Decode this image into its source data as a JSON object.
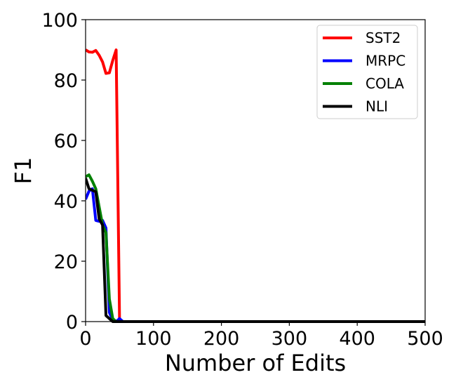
{
  "chart_data": {
    "type": "line",
    "title": "",
    "xlabel": "Number of Edits",
    "ylabel": "F1",
    "xlim": [
      0,
      500
    ],
    "ylim": [
      0,
      100
    ],
    "x_ticks": [
      0,
      100,
      200,
      300,
      400,
      500
    ],
    "y_ticks": [
      0,
      20,
      40,
      60,
      80,
      100
    ],
    "grid": false,
    "legend_position": "top-right",
    "series": [
      {
        "name": "SST2",
        "color": "#ff0000",
        "x": [
          0,
          5,
          10,
          15,
          20,
          25,
          30,
          35,
          40,
          45,
          50,
          55,
          500
        ],
        "y": [
          90,
          89.3,
          89.2,
          89.8,
          88.2,
          86,
          82.2,
          82.4,
          86.5,
          90,
          0.5,
          0,
          0
        ]
      },
      {
        "name": "MRPC",
        "color": "#0000ff",
        "x": [
          0,
          5,
          10,
          15,
          20,
          25,
          30,
          35,
          40,
          45,
          50,
          55,
          500
        ],
        "y": [
          40.5,
          43.2,
          44,
          33.5,
          33.2,
          33.5,
          31,
          3,
          0.5,
          0,
          1,
          0,
          0
        ]
      },
      {
        "name": "COLA",
        "color": "#008000",
        "x": [
          0,
          5,
          10,
          15,
          20,
          25,
          30,
          35,
          40,
          45,
          50,
          500
        ],
        "y": [
          48,
          48.6,
          46.5,
          44,
          38,
          32,
          29.5,
          7.5,
          1,
          0,
          0,
          0
        ]
      },
      {
        "name": "NLI",
        "color": "#000000",
        "x": [
          0,
          5,
          10,
          15,
          20,
          25,
          30,
          35,
          40,
          45,
          500
        ],
        "y": [
          47.5,
          44,
          43.5,
          43,
          34,
          32,
          2,
          1,
          0,
          0,
          0
        ]
      }
    ]
  }
}
